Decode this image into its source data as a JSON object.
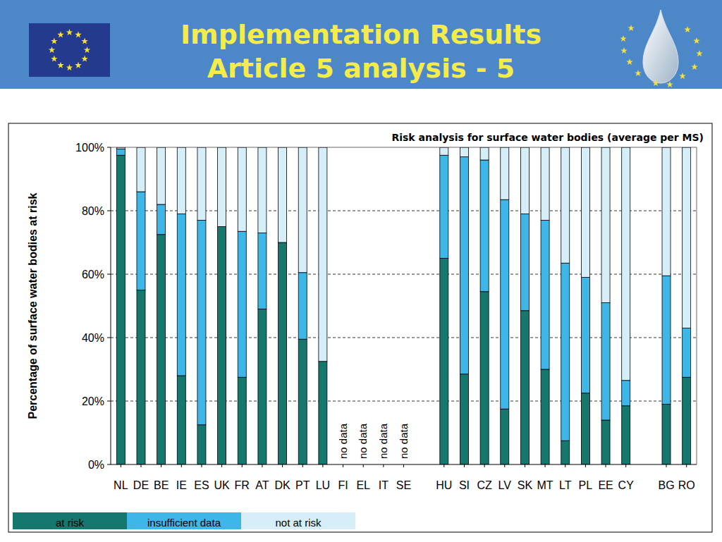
{
  "header": {
    "title": "Implementation Results",
    "subtitle": "Article 5 analysis - 5"
  },
  "chart_data": {
    "type": "bar",
    "stacked": true,
    "title": "Risk analysis for surface water bodies  (average per MS)",
    "y_label": "Percentage of surface water bodies at risk",
    "categories": [
      "NL",
      "DE",
      "BE",
      "IE",
      "ES",
      "UK",
      "FR",
      "AT",
      "DK",
      "PT",
      "LU",
      "FI",
      "EL",
      "IT",
      "SE",
      null,
      "HU",
      "SI",
      "CZ",
      "LV",
      "SK",
      "MT",
      "LT",
      "PL",
      "EE",
      "CY",
      null,
      "BG",
      "RO"
    ],
    "series": [
      {
        "name": "at risk",
        "color": "#16776e",
        "values": [
          97.5,
          55,
          72.5,
          28,
          12.5,
          75,
          27.5,
          49,
          70,
          39.5,
          32.5,
          null,
          null,
          null,
          null,
          null,
          65,
          28.5,
          54.5,
          17.5,
          48.5,
          30,
          7.5,
          22.5,
          14,
          18.5,
          null,
          19,
          27.5
        ]
      },
      {
        "name": "insufficient data",
        "color": "#3fb6e8",
        "values": [
          2,
          31,
          9.5,
          51,
          64.5,
          0,
          46,
          24,
          0,
          21,
          0,
          null,
          null,
          null,
          null,
          null,
          32.5,
          68.5,
          41.5,
          66,
          30.5,
          47,
          56,
          36.5,
          37,
          8,
          null,
          40.5,
          15.5
        ]
      },
      {
        "name": "not at risk",
        "color": "#d6eef7",
        "values": [
          0.5,
          14,
          18,
          21,
          23,
          25,
          26.5,
          27,
          30,
          39.5,
          67.5,
          null,
          null,
          null,
          null,
          null,
          2.5,
          3,
          4,
          16.5,
          21,
          23,
          36.5,
          41,
          49,
          73.5,
          null,
          40.5,
          57
        ]
      }
    ],
    "annotations": [
      {
        "text": "no data",
        "category": "FI"
      },
      {
        "text": "no data",
        "category": "EL"
      },
      {
        "text": "no data",
        "category": "IT"
      },
      {
        "text": "no data",
        "category": "SE"
      }
    ],
    "ylim": [
      0,
      100
    ],
    "yticks": [
      {
        "value": 0,
        "label": "0%"
      },
      {
        "value": 20,
        "label": "20%"
      },
      {
        "value": 40,
        "label": "40%"
      },
      {
        "value": 60,
        "label": "60%"
      },
      {
        "value": 80,
        "label": "80%"
      },
      {
        "value": 100,
        "label": "100%"
      }
    ],
    "grid": true,
    "legend": "bottom"
  }
}
